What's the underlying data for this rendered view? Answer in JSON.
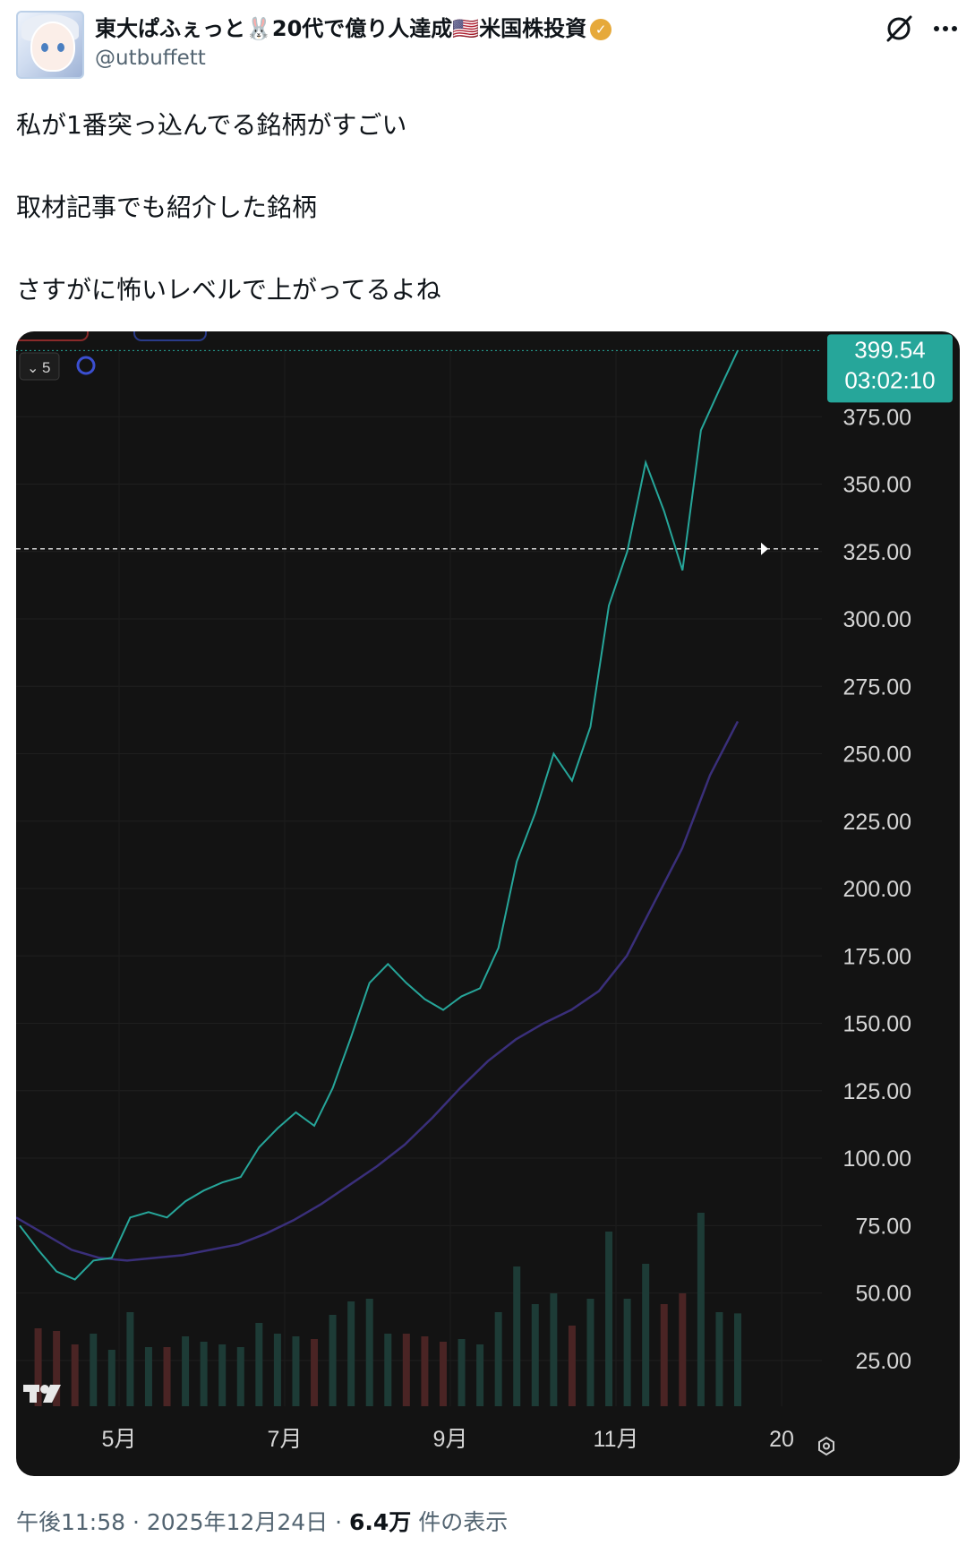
{
  "author": {
    "display_name": "東大ぱふぇっと🐰20代で億り人達成🇺🇸米国株投資",
    "handle": "@utbuffett",
    "verified": true
  },
  "post": {
    "lines": [
      "私が1番突っ込んでる銘柄がすごい",
      "取材記事でも紹介した銘柄",
      "さすがに怖いレベルで上がってるよね"
    ]
  },
  "meta": {
    "time": "午後11:58",
    "separator": "·",
    "date": "2025年12月24日",
    "views": "6.4万",
    "views_label": "件の表示"
  },
  "chart_data": {
    "type": "line",
    "interval_label": "5",
    "x_tick_labels": [
      "5月",
      "7月",
      "9月",
      "11月",
      "20"
    ],
    "y_tick_labels": [
      "375.00",
      "350.00",
      "325.00",
      "300.00",
      "275.00",
      "250.00",
      "225.00",
      "200.00",
      "175.00",
      "150.00",
      "125.00",
      "100.00",
      "75.00",
      "50.00",
      "25.00"
    ],
    "ylim": [
      8,
      400
    ],
    "last_price": "399.54",
    "countdown": "03:02:10",
    "crosshair_price": 326,
    "series": [
      {
        "values": [
          75,
          66,
          58,
          55,
          62,
          63,
          78,
          80,
          78,
          84,
          88,
          91,
          93,
          104,
          111,
          117,
          112,
          126,
          145,
          165,
          172,
          165,
          159,
          155,
          160,
          163,
          178,
          210,
          228,
          250,
          240,
          260,
          305,
          325,
          358,
          340,
          318,
          370,
          385,
          399.54
        ]
      },
      {
        "values": [
          78,
          72,
          66,
          63,
          62,
          63,
          64,
          66,
          68,
          72,
          77,
          83,
          90,
          97,
          105,
          115,
          126,
          136,
          144,
          150,
          155,
          162,
          175,
          195,
          215,
          242,
          262
        ]
      }
    ],
    "colors": {
      "up": "#26a69a",
      "down": "#ef5350",
      "ma": "#3a2f7a",
      "price_tag": "#26a69a"
    }
  }
}
